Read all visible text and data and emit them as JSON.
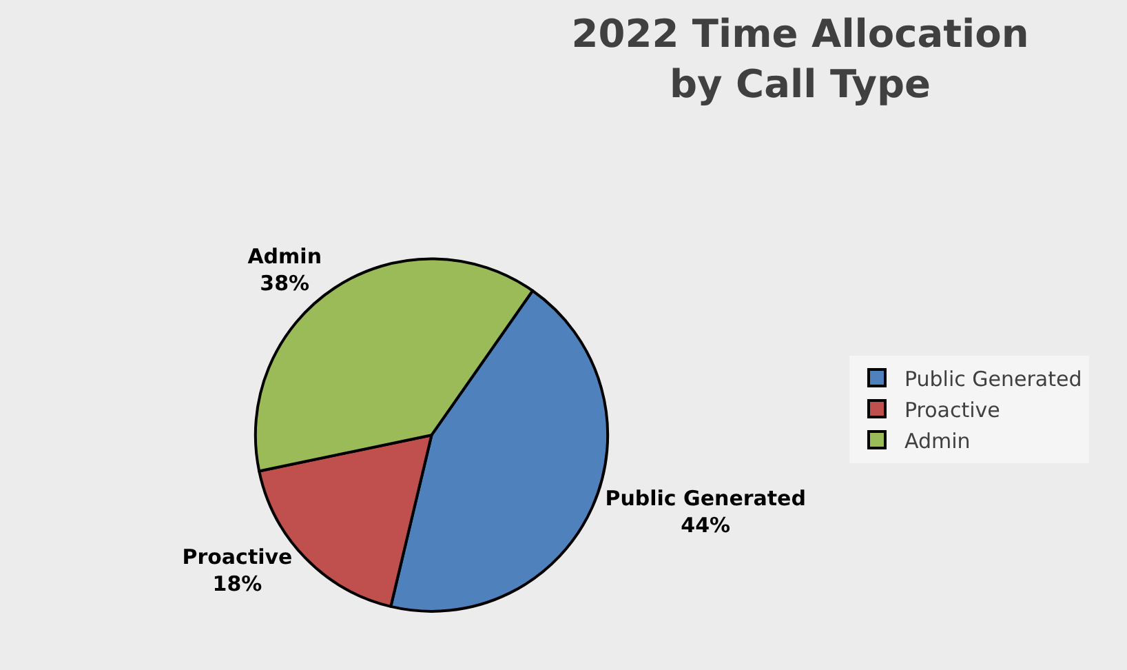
{
  "chart_data": {
    "type": "pie",
    "title": "2022 Time Allocation\nby Call Type",
    "categories": [
      "Public Generated",
      "Proactive",
      "Admin"
    ],
    "values": [
      44,
      18,
      38
    ],
    "colors": [
      "#4f81bd",
      "#c0504d",
      "#9bbb59"
    ],
    "value_labels": [
      "44%",
      "18%",
      "38%"
    ],
    "legend": "right"
  }
}
